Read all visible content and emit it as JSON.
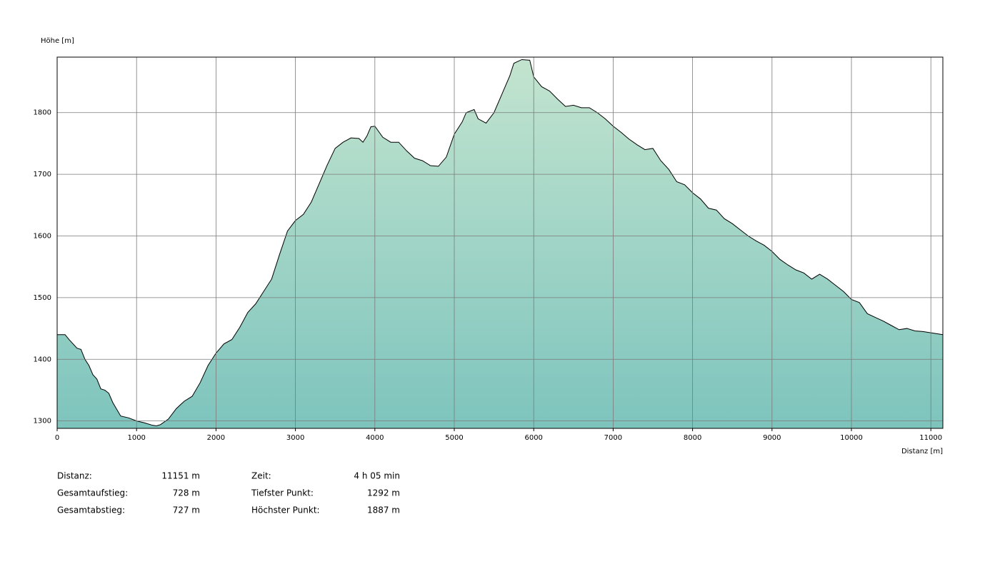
{
  "chart_data": {
    "type": "area",
    "y_label": "Höhe [m]",
    "x_label": "Distanz [m]",
    "xlim": [
      0,
      11151
    ],
    "ylim": [
      1288,
      1890
    ],
    "xticks": [
      0,
      1000,
      2000,
      3000,
      4000,
      5000,
      6000,
      7000,
      8000,
      9000,
      10000,
      11000
    ],
    "yticks": [
      1300,
      1400,
      1500,
      1600,
      1700,
      1800
    ],
    "grid": true,
    "color_top": "#c3e4cf",
    "color_bottom": "#7dc4bd",
    "line_color": "#000000",
    "x": [
      0,
      100,
      150,
      250,
      300,
      350,
      400,
      450,
      500,
      550,
      600,
      650,
      700,
      800,
      900,
      1000,
      1100,
      1200,
      1250,
      1300,
      1400,
      1500,
      1600,
      1700,
      1800,
      1900,
      2000,
      2100,
      2200,
      2300,
      2400,
      2500,
      2600,
      2700,
      2800,
      2900,
      3000,
      3100,
      3200,
      3300,
      3400,
      3500,
      3600,
      3700,
      3800,
      3850,
      3900,
      3950,
      4000,
      4100,
      4200,
      4300,
      4400,
      4500,
      4600,
      4700,
      4800,
      4900,
      5000,
      5100,
      5150,
      5250,
      5300,
      5400,
      5500,
      5600,
      5700,
      5750,
      5850,
      5950,
      6000,
      6100,
      6200,
      6300,
      6400,
      6500,
      6600,
      6700,
      6800,
      6900,
      7000,
      7100,
      7200,
      7300,
      7400,
      7500,
      7600,
      7700,
      7800,
      7900,
      8000,
      8100,
      8200,
      8300,
      8400,
      8500,
      8600,
      8700,
      8800,
      8900,
      9000,
      9100,
      9200,
      9300,
      9400,
      9500,
      9600,
      9700,
      9800,
      9900,
      10000,
      10100,
      10200,
      10300,
      10400,
      10500,
      10600,
      10700,
      10800,
      10900,
      11000,
      11151
    ],
    "values": [
      1440,
      1440,
      1432,
      1418,
      1416,
      1400,
      1390,
      1375,
      1368,
      1352,
      1350,
      1345,
      1330,
      1308,
      1305,
      1300,
      1297,
      1293,
      1292,
      1294,
      1303,
      1320,
      1332,
      1340,
      1362,
      1390,
      1410,
      1425,
      1432,
      1452,
      1476,
      1490,
      1510,
      1530,
      1570,
      1608,
      1625,
      1635,
      1655,
      1685,
      1715,
      1742,
      1752,
      1759,
      1758,
      1752,
      1762,
      1777,
      1778,
      1760,
      1752,
      1752,
      1738,
      1726,
      1722,
      1714,
      1713,
      1728,
      1765,
      1785,
      1800,
      1805,
      1790,
      1783,
      1800,
      1830,
      1860,
      1880,
      1886,
      1885,
      1858,
      1842,
      1835,
      1822,
      1810,
      1812,
      1808,
      1808,
      1800,
      1790,
      1778,
      1768,
      1757,
      1748,
      1740,
      1742,
      1722,
      1708,
      1688,
      1683,
      1670,
      1660,
      1645,
      1642,
      1628,
      1620,
      1610,
      1600,
      1592,
      1585,
      1575,
      1562,
      1553,
      1545,
      1540,
      1530,
      1538,
      1530,
      1520,
      1510,
      1497,
      1492,
      1474,
      1468,
      1462,
      1455,
      1448,
      1450,
      1446,
      1445,
      1443,
      1440
    ],
    "stats": [
      [
        {
          "label": "Distanz:",
          "value": "11151 m"
        },
        {
          "label": "Gesamtaufstieg:",
          "value": "728 m"
        },
        {
          "label": "Gesamtabstieg:",
          "value": "727 m"
        }
      ],
      [
        {
          "label": "Zeit:",
          "value": "4 h 05 min"
        },
        {
          "label": "Tiefster Punkt:",
          "value": "1292 m"
        },
        {
          "label": "Höchster Punkt:",
          "value": "1887 m"
        }
      ]
    ]
  }
}
